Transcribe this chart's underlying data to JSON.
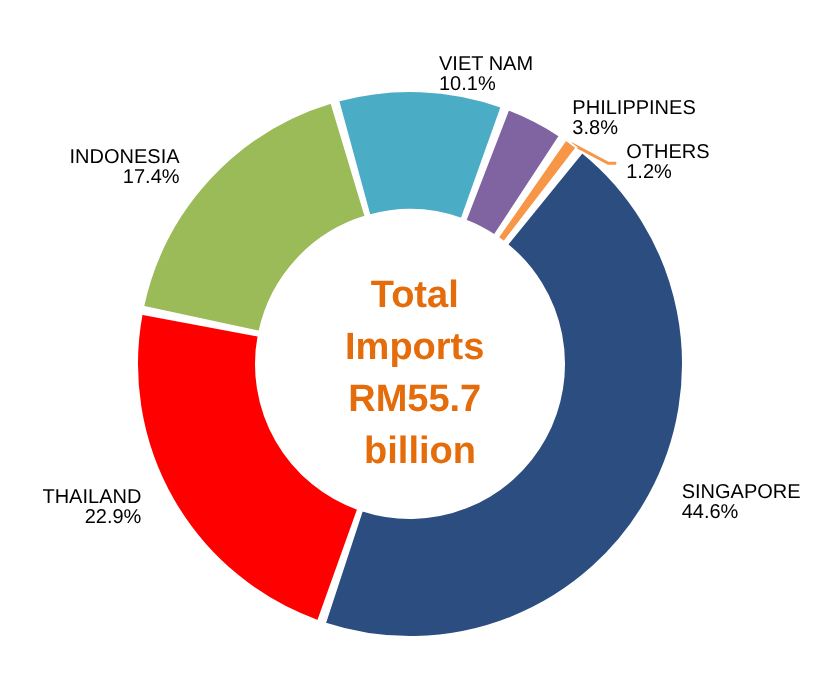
{
  "chart_data": {
    "type": "donut",
    "title": "Total Imports RM55.7 billion",
    "categories": [
      "VIET NAM",
      "PHILIPPINES",
      "OTHERS",
      "SINGAPORE",
      "THAILAND",
      "INDONESIA"
    ],
    "values": [
      10.1,
      3.8,
      1.2,
      44.6,
      22.9,
      17.4
    ],
    "value_labels": [
      "10.1%",
      "3.8%",
      "1.2%",
      "44.6%",
      "22.9%",
      "17.4%"
    ],
    "colors": [
      "#4bacc6",
      "#8064a2",
      "#f79646",
      "#2c4d7f",
      "#ff0000",
      "#9bbb59"
    ],
    "legend": false
  }
}
